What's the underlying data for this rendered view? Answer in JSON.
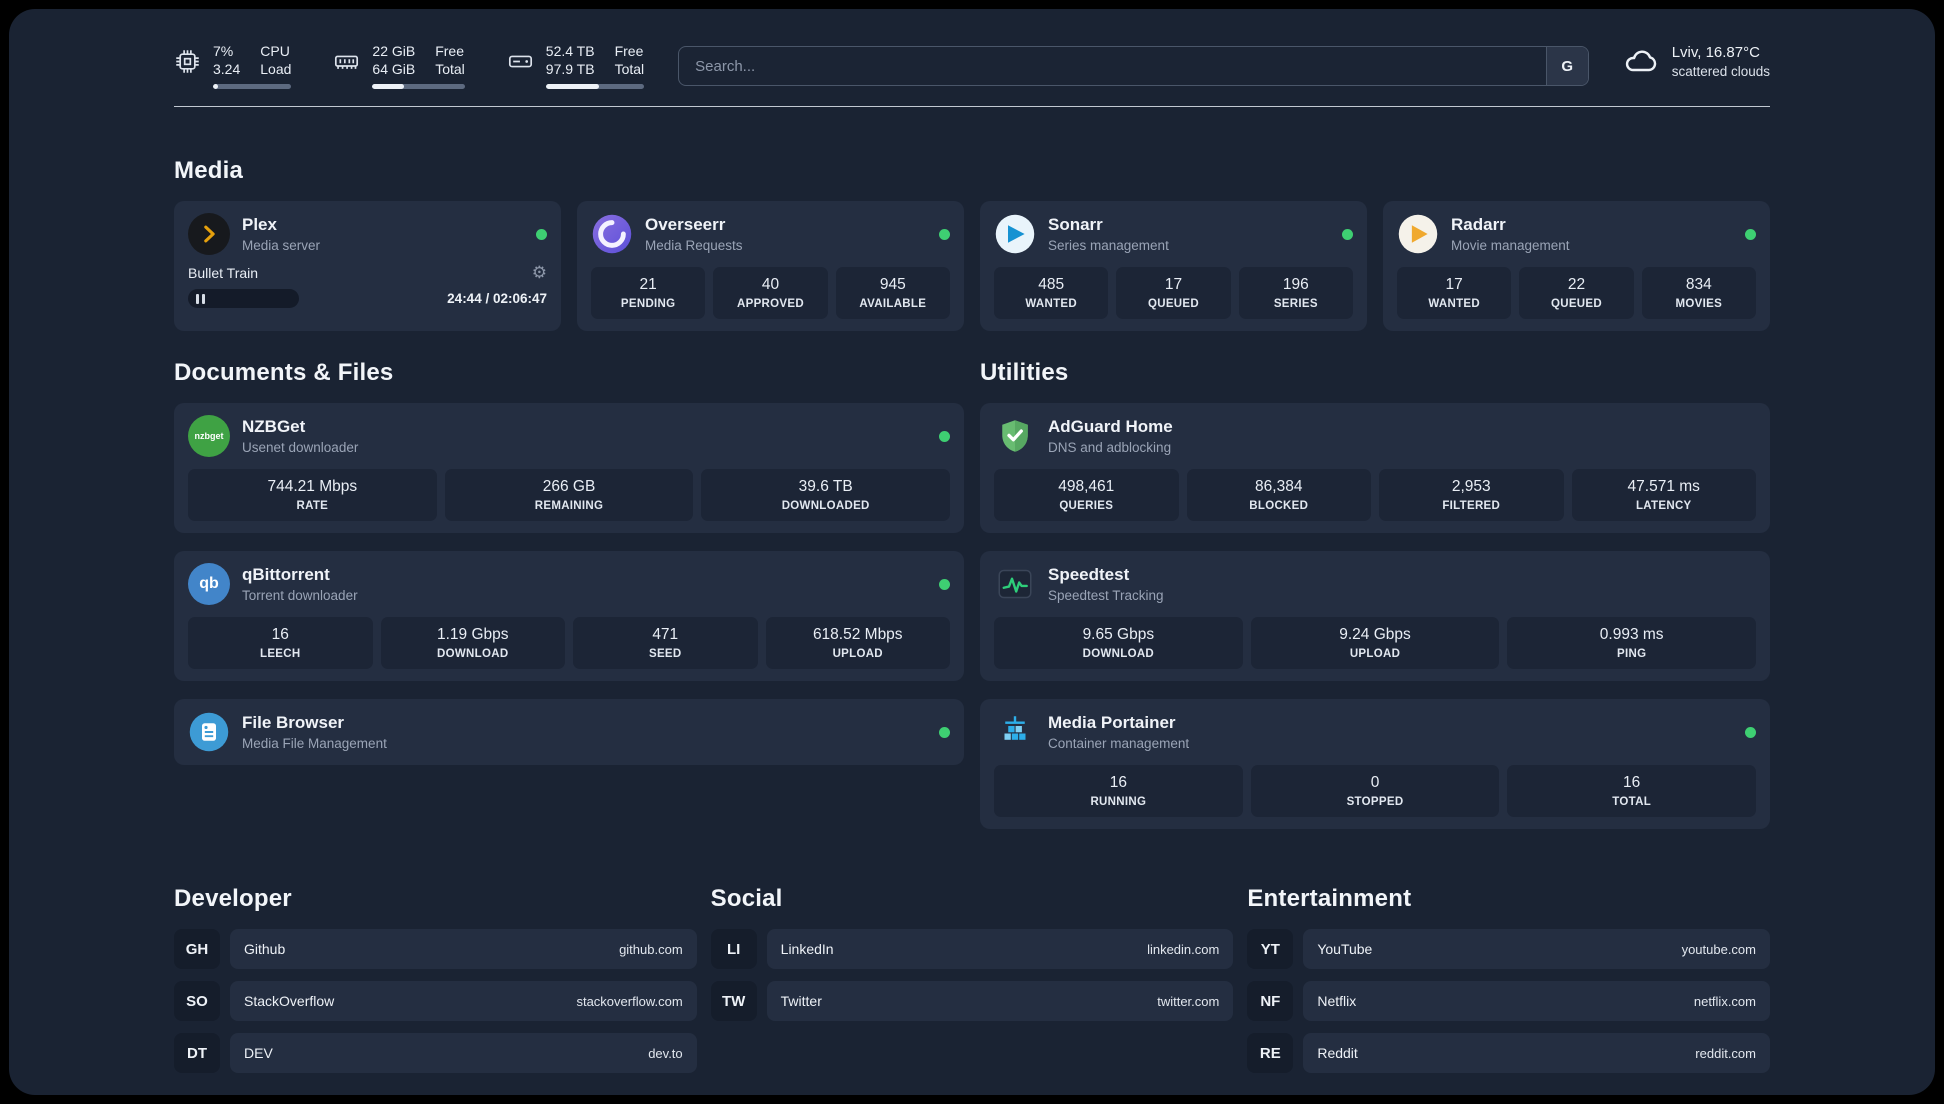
{
  "colors": {
    "background": "#1a2333",
    "card": "#242e41",
    "stat_box": "#1c2536",
    "status_online_green": "#3ecf72",
    "plex_amber": "#e5a00d",
    "overseerr_purple": "#6f5bd6",
    "sonarr_blue": "#1692d2",
    "radarr_amber": "#f0a92e",
    "nzbget_green": "#3fa244",
    "qbittorrent_blue": "#4285c9",
    "adguard_green": "#68bc71",
    "speedtest_green": "#2ecf7a",
    "portainer_blue": "#2daee9",
    "filebrowser_blue": "#3d9bd5"
  },
  "header": {
    "cpu": {
      "value1": "7%",
      "value2": "3.24",
      "label1": "CPU",
      "label2": "Load",
      "progress_pct": 7
    },
    "memory": {
      "value1": "22 GiB",
      "value2": "64 GiB",
      "label1": "Free",
      "label2": "Total",
      "progress_pct": 34
    },
    "disk": {
      "value1": "52.4 TB",
      "value2": "97.9 TB",
      "label1": "Free",
      "label2": "Total",
      "progress_pct": 54
    },
    "search": {
      "placeholder": "Search...",
      "engine_label": "G"
    },
    "weather": {
      "location": "Lviv, 16.87°C",
      "condition": "scattered clouds"
    }
  },
  "icons": {
    "gear": "⚙",
    "nzbget_label": "nzbget",
    "qbittorrent_label": "qb"
  },
  "media": {
    "title": "Media",
    "cards": [
      {
        "name": "Plex",
        "subtitle": "Media server",
        "status": "online",
        "player": {
          "title": "Bullet Train",
          "time": "24:44 / 02:06:47"
        }
      },
      {
        "name": "Overseerr",
        "subtitle": "Media Requests",
        "status": "online",
        "stats": [
          {
            "value": "21",
            "label": "PENDING"
          },
          {
            "value": "40",
            "label": "APPROVED"
          },
          {
            "value": "945",
            "label": "AVAILABLE"
          }
        ]
      },
      {
        "name": "Sonarr",
        "subtitle": "Series management",
        "status": "online",
        "stats": [
          {
            "value": "485",
            "label": "WANTED"
          },
          {
            "value": "17",
            "label": "QUEUED"
          },
          {
            "value": "196",
            "label": "SERIES"
          }
        ]
      },
      {
        "name": "Radarr",
        "subtitle": "Movie management",
        "status": "online",
        "stats": [
          {
            "value": "17",
            "label": "WANTED"
          },
          {
            "value": "22",
            "label": "QUEUED"
          },
          {
            "value": "834",
            "label": "MOVIES"
          }
        ]
      }
    ]
  },
  "documents": {
    "title": "Documents & Files",
    "cards": [
      {
        "name": "NZBGet",
        "subtitle": "Usenet downloader",
        "status": "online",
        "stats": [
          {
            "value": "744.21 Mbps",
            "label": "RATE"
          },
          {
            "value": "266 GB",
            "label": "REMAINING"
          },
          {
            "value": "39.6 TB",
            "label": "DOWNLOADED"
          }
        ]
      },
      {
        "name": "qBittorrent",
        "subtitle": "Torrent downloader",
        "status": "online",
        "stats": [
          {
            "value": "16",
            "label": "LEECH"
          },
          {
            "value": "1.19 Gbps",
            "label": "DOWNLOAD"
          },
          {
            "value": "471",
            "label": "SEED"
          },
          {
            "value": "618.52 Mbps",
            "label": "UPLOAD"
          }
        ]
      },
      {
        "name": "File Browser",
        "subtitle": "Media File Management",
        "status": "online"
      }
    ]
  },
  "utilities": {
    "title": "Utilities",
    "cards": [
      {
        "name": "AdGuard Home",
        "subtitle": "DNS and adblocking",
        "stats": [
          {
            "value": "498,461",
            "label": "QUERIES"
          },
          {
            "value": "86,384",
            "label": "BLOCKED"
          },
          {
            "value": "2,953",
            "label": "FILTERED"
          },
          {
            "value": "47.571 ms",
            "label": "LATENCY"
          }
        ]
      },
      {
        "name": "Speedtest",
        "subtitle": "Speedtest Tracking",
        "stats": [
          {
            "value": "9.65 Gbps",
            "label": "DOWNLOAD"
          },
          {
            "value": "9.24 Gbps",
            "label": "UPLOAD"
          },
          {
            "value": "0.993 ms",
            "label": "PING"
          }
        ]
      },
      {
        "name": "Media Portainer",
        "subtitle": "Container management",
        "status": "online",
        "stats": [
          {
            "value": "16",
            "label": "RUNNING"
          },
          {
            "value": "0",
            "label": "STOPPED"
          },
          {
            "value": "16",
            "label": "TOTAL"
          }
        ]
      }
    ]
  },
  "links": {
    "developer": {
      "title": "Developer",
      "items": [
        {
          "abbr": "GH",
          "name": "Github",
          "url": "github.com"
        },
        {
          "abbr": "SO",
          "name": "StackOverflow",
          "url": "stackoverflow.com"
        },
        {
          "abbr": "DT",
          "name": "DEV",
          "url": "dev.to"
        }
      ]
    },
    "social": {
      "title": "Social",
      "items": [
        {
          "abbr": "LI",
          "name": "LinkedIn",
          "url": "linkedin.com"
        },
        {
          "abbr": "TW",
          "name": "Twitter",
          "url": "twitter.com"
        }
      ]
    },
    "entertainment": {
      "title": "Entertainment",
      "items": [
        {
          "abbr": "YT",
          "name": "YouTube",
          "url": "youtube.com"
        },
        {
          "abbr": "NF",
          "name": "Netflix",
          "url": "netflix.com"
        },
        {
          "abbr": "RE",
          "name": "Reddit",
          "url": "reddit.com"
        }
      ]
    }
  }
}
